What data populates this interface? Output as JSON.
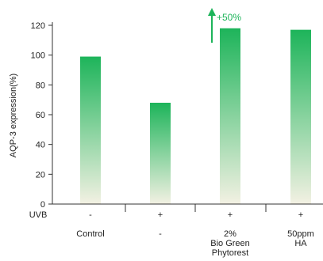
{
  "chart_data": {
    "type": "bar",
    "ylabel": "AQP-3 expression(%)",
    "ylim": [
      0,
      120
    ],
    "yticks": [
      0,
      20,
      40,
      60,
      80,
      100,
      120
    ],
    "categories": [
      "Control",
      "-",
      "2% Bio Green Phytorest",
      "50ppm HA"
    ],
    "category_lines": [
      [
        "Control"
      ],
      [
        "-"
      ],
      [
        "2%",
        "Bio Green",
        "Phytorest"
      ],
      [
        "50ppm",
        "HA"
      ]
    ],
    "values": [
      99,
      68,
      118,
      117
    ],
    "uvb_label": "UVB",
    "uvb": [
      "-",
      "+",
      "+",
      "+"
    ],
    "annotation": {
      "text": "+50%",
      "category_index": 2
    },
    "colors": {
      "bar_top": "#1db45a",
      "bar_bottom": "#f3f1e3",
      "annotation": "#1db45a",
      "axis": "#333333"
    }
  }
}
